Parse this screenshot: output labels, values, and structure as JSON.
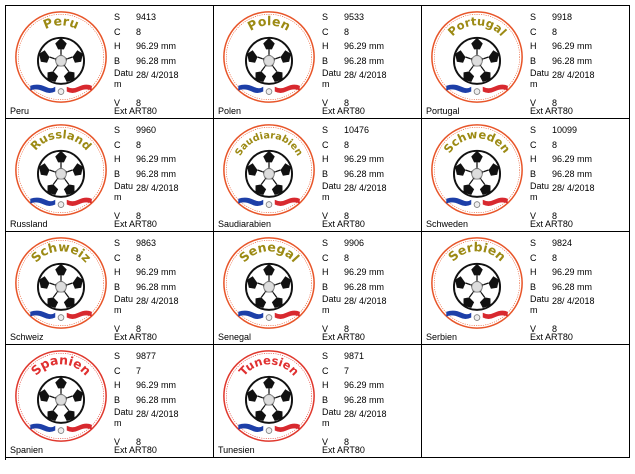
{
  "labels": {
    "s": "S",
    "c": "C",
    "h": "H",
    "b": "B",
    "datum": "Datu m",
    "v": "V",
    "ext": "Ext"
  },
  "colors": {
    "orange_ring": "#e8562a",
    "red_ring": "#e0392e",
    "olive_text": "#9c8a14",
    "red_text": "#e03030",
    "flag_blue": "#1d3fa8",
    "flag_red": "#d8292f"
  },
  "designs": [
    {
      "title": "Peru",
      "name": "Peru",
      "s": "9413",
      "c": "8",
      "h": "96.29 mm",
      "b": "96.28 mm",
      "datum": "28/ 4/2018",
      "v": "8",
      "ext": "ART80",
      "style": "olive"
    },
    {
      "title": "Polen",
      "name": "Polen",
      "s": "9533",
      "c": "8",
      "h": "96.29 mm",
      "b": "96.28 mm",
      "datum": "28/ 4/2018",
      "v": "8",
      "ext": "ART80",
      "style": "olive"
    },
    {
      "title": "Portugal",
      "name": "Portugal",
      "s": "9918",
      "c": "8",
      "h": "96.29 mm",
      "b": "96.28 mm",
      "datum": "28/ 4/2018",
      "v": "8",
      "ext": "ART80",
      "style": "olive"
    },
    {
      "title": "Russland",
      "name": "Russland",
      "s": "9960",
      "c": "8",
      "h": "96.29 mm",
      "b": "96.28 mm",
      "datum": "28/ 4/2018",
      "v": "8",
      "ext": "ART80",
      "style": "olive"
    },
    {
      "title": "Saudiarabien",
      "name": "Saudiarabien",
      "s": "10476",
      "c": "8",
      "h": "96.29 mm",
      "b": "96.28 mm",
      "datum": "28/ 4/2018",
      "v": "8",
      "ext": "ART80",
      "style": "olive"
    },
    {
      "title": "Schweden",
      "name": "Schweden",
      "s": "10099",
      "c": "8",
      "h": "96.29 mm",
      "b": "96.28 mm",
      "datum": "28/ 4/2018",
      "v": "8",
      "ext": "ART80",
      "style": "olive"
    },
    {
      "title": "Schweiz",
      "name": "Schweiz",
      "s": "9863",
      "c": "8",
      "h": "96.29 mm",
      "b": "96.28 mm",
      "datum": "28/ 4/2018",
      "v": "8",
      "ext": "ART80",
      "style": "olive"
    },
    {
      "title": "Senegal",
      "name": "Senegal",
      "s": "9906",
      "c": "8",
      "h": "96.29 mm",
      "b": "96.28 mm",
      "datum": "28/ 4/2018",
      "v": "8",
      "ext": "ART80",
      "style": "olive"
    },
    {
      "title": "Serbien",
      "name": "Serbien",
      "s": "9824",
      "c": "8",
      "h": "96.29 mm",
      "b": "96.28 mm",
      "datum": "28/ 4/2018",
      "v": "8",
      "ext": "ART80",
      "style": "olive"
    },
    {
      "title": "Spanien",
      "name": "Spanien",
      "s": "9877",
      "c": "7",
      "h": "96.29 mm",
      "b": "96.28 mm",
      "datum": "28/ 4/2018",
      "v": "8",
      "ext": "ART80",
      "style": "red"
    },
    {
      "title": "Tunesien",
      "name": "Tunesien",
      "s": "9871",
      "c": "7",
      "h": "96.29 mm",
      "b": "96.28 mm",
      "datum": "28/ 4/2018",
      "v": "8",
      "ext": "ART80",
      "style": "red"
    }
  ]
}
